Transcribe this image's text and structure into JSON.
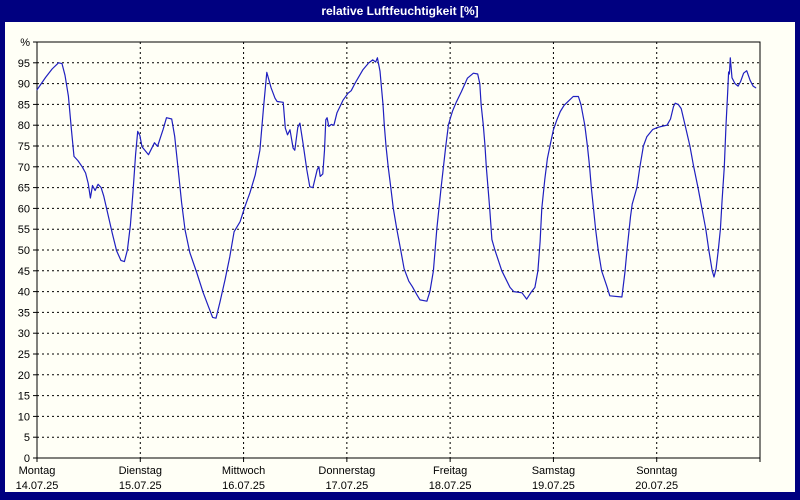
{
  "window": {
    "title": "relative Luftfeuchtigkeit [%]"
  },
  "colors": {
    "frame": "#000080",
    "title_text": "#ffffff",
    "curve": "#2020c0",
    "grid": "#000000",
    "axis": "#000000",
    "background": "#fffff6",
    "text": "#000000"
  },
  "chart_data": {
    "type": "line",
    "title": "relative Luftfeuchtigkeit [%]",
    "ylabel": "%",
    "y_axis_symbol": "%",
    "ylim": [
      0,
      100
    ],
    "y_tick_step": 5,
    "y_tick_labels": [
      0,
      5,
      10,
      15,
      20,
      25,
      30,
      35,
      40,
      45,
      50,
      55,
      60,
      65,
      70,
      75,
      80,
      85,
      90,
      95
    ],
    "x_unit": "hours",
    "x_range_hours": [
      0,
      168
    ],
    "grid": "dashed",
    "legend": "none",
    "days": [
      {
        "name": "Montag",
        "date": "14.07.25",
        "start_hour": 0
      },
      {
        "name": "Dienstag",
        "date": "15.07.25",
        "start_hour": 24
      },
      {
        "name": "Mittwoch",
        "date": "16.07.25",
        "start_hour": 48
      },
      {
        "name": "Donnerstag",
        "date": "17.07.25",
        "start_hour": 72
      },
      {
        "name": "Freitag",
        "date": "18.07.25",
        "start_hour": 96
      },
      {
        "name": "Samstag",
        "date": "19.07.25",
        "start_hour": 120
      },
      {
        "name": "Sonntag",
        "date": "20.07.25",
        "start_hour": 144
      }
    ],
    "series": [
      {
        "name": "relative Luftfeuchtigkeit",
        "points": [
          [
            0,
            88.5
          ],
          [
            1,
            90
          ],
          [
            2,
            91.5
          ],
          [
            3.5,
            93.5
          ],
          [
            5,
            95
          ],
          [
            5.8,
            94.8
          ],
          [
            6.5,
            92
          ],
          [
            7.3,
            87
          ],
          [
            8,
            79
          ],
          [
            8.6,
            72.5
          ],
          [
            9.5,
            71.5
          ],
          [
            10.5,
            70
          ],
          [
            11.3,
            68.5
          ],
          [
            11.9,
            66
          ],
          [
            12.4,
            62.5
          ],
          [
            12.9,
            65.5
          ],
          [
            13.5,
            64.3
          ],
          [
            14.2,
            65.8
          ],
          [
            14.9,
            65
          ],
          [
            15.5,
            63
          ],
          [
            16.5,
            58.5
          ],
          [
            17.5,
            54
          ],
          [
            18.5,
            49.8
          ],
          [
            19.5,
            47.5
          ],
          [
            20.3,
            47.2
          ],
          [
            21,
            50
          ],
          [
            21.7,
            56
          ],
          [
            22.3,
            64
          ],
          [
            22.9,
            73
          ],
          [
            23.4,
            78.5
          ],
          [
            23.9,
            77.5
          ],
          [
            24.4,
            74.8
          ],
          [
            25.9,
            72.9
          ],
          [
            27.3,
            75.8
          ],
          [
            28,
            74.9
          ],
          [
            29.3,
            79
          ],
          [
            30.1,
            81.8
          ],
          [
            31.3,
            81.5
          ],
          [
            32,
            77.3
          ],
          [
            32.8,
            69.3
          ],
          [
            33.6,
            61.4
          ],
          [
            34.4,
            54.9
          ],
          [
            35.5,
            49.4
          ],
          [
            37.1,
            44.6
          ],
          [
            38.6,
            39.8
          ],
          [
            39.8,
            36.5
          ],
          [
            40.8,
            33.8
          ],
          [
            41.6,
            33.6
          ],
          [
            42.5,
            37.4
          ],
          [
            43.7,
            42.9
          ],
          [
            44.8,
            48.4
          ],
          [
            45.8,
            54.4
          ],
          [
            47.2,
            56.8
          ],
          [
            48.3,
            60.4
          ],
          [
            49.5,
            63.8
          ],
          [
            50.7,
            68
          ],
          [
            51.8,
            74
          ],
          [
            52.7,
            85
          ],
          [
            53.4,
            92.7
          ],
          [
            54.4,
            89
          ],
          [
            55.3,
            86.5
          ],
          [
            55.8,
            85.7
          ],
          [
            57.2,
            85.5
          ],
          [
            57.7,
            79.3
          ],
          [
            58.2,
            77.7
          ],
          [
            58.8,
            78.9
          ],
          [
            59.5,
            74.5
          ],
          [
            59.9,
            74
          ],
          [
            60.6,
            79.5
          ],
          [
            61.1,
            80.5
          ],
          [
            61.8,
            75.7
          ],
          [
            62.7,
            69.3
          ],
          [
            63.4,
            65.2
          ],
          [
            64.1,
            65
          ],
          [
            65.1,
            69.3
          ],
          [
            65.5,
            70
          ],
          [
            65.8,
            67.7
          ],
          [
            66.4,
            68.3
          ],
          [
            66.8,
            74
          ],
          [
            67.1,
            81.3
          ],
          [
            67.4,
            81.8
          ],
          [
            67.8,
            79.7
          ],
          [
            68.4,
            80.2
          ],
          [
            69,
            80
          ],
          [
            69.7,
            83
          ],
          [
            71.1,
            86
          ],
          [
            72.3,
            87.7
          ],
          [
            73,
            88.3
          ],
          [
            74,
            90.3
          ],
          [
            75.7,
            93.3
          ],
          [
            77,
            94.9
          ],
          [
            78,
            95.7
          ],
          [
            78.7,
            95.2
          ],
          [
            79.1,
            96.2
          ],
          [
            79.7,
            93
          ],
          [
            80,
            89.5
          ],
          [
            80.4,
            85
          ],
          [
            80.7,
            80
          ],
          [
            81.1,
            75
          ],
          [
            81.6,
            70
          ],
          [
            82.2,
            65
          ],
          [
            82.8,
            60
          ],
          [
            83.6,
            55
          ],
          [
            84.5,
            50
          ],
          [
            85.3,
            45.5
          ],
          [
            86.4,
            42.5
          ],
          [
            87.2,
            41.2
          ],
          [
            88.3,
            39.2
          ],
          [
            89,
            38
          ],
          [
            90.6,
            37.7
          ],
          [
            91.3,
            40
          ],
          [
            92.1,
            45
          ],
          [
            92.9,
            55
          ],
          [
            93.9,
            65
          ],
          [
            95,
            75
          ],
          [
            95.6,
            80
          ],
          [
            96,
            81.5
          ],
          [
            96.6,
            83.5
          ],
          [
            97.4,
            85.5
          ],
          [
            98.6,
            88
          ],
          [
            100,
            91.3
          ],
          [
            101.4,
            92.5
          ],
          [
            102.4,
            92.3
          ],
          [
            102.9,
            90
          ],
          [
            103.2,
            85
          ],
          [
            103.7,
            80
          ],
          [
            104.1,
            75
          ],
          [
            104.4,
            70
          ],
          [
            104.8,
            65
          ],
          [
            105.2,
            60
          ],
          [
            105.7,
            52.5
          ],
          [
            106.4,
            50
          ],
          [
            108,
            45
          ],
          [
            109.9,
            41
          ],
          [
            110.8,
            40
          ],
          [
            112.7,
            39.7
          ],
          [
            113.8,
            38.2
          ],
          [
            114.8,
            39.8
          ],
          [
            115.7,
            41
          ],
          [
            116.4,
            45
          ],
          [
            116.9,
            52
          ],
          [
            117.3,
            60
          ],
          [
            118,
            67
          ],
          [
            118.6,
            72
          ],
          [
            119.3,
            75.5
          ],
          [
            120,
            78.9
          ],
          [
            120.8,
            81.3
          ],
          [
            121.6,
            83.3
          ],
          [
            122.5,
            84.8
          ],
          [
            123.5,
            85.8
          ],
          [
            124.6,
            86.9
          ],
          [
            125.8,
            86.9
          ],
          [
            126.4,
            84.9
          ],
          [
            127.3,
            80
          ],
          [
            127.9,
            75
          ],
          [
            128.4,
            70
          ],
          [
            128.8,
            65
          ],
          [
            129.3,
            60
          ],
          [
            129.8,
            55
          ],
          [
            130.4,
            50
          ],
          [
            131.2,
            45
          ],
          [
            132.4,
            41.3
          ],
          [
            133.1,
            39
          ],
          [
            135.9,
            38.7
          ],
          [
            136.6,
            44.6
          ],
          [
            137.1,
            50
          ],
          [
            137.6,
            55
          ],
          [
            137.9,
            58
          ],
          [
            138.3,
            61
          ],
          [
            139.4,
            65
          ],
          [
            140.1,
            70
          ],
          [
            140.9,
            75
          ],
          [
            141.7,
            77.2
          ],
          [
            143.1,
            79
          ],
          [
            144.3,
            79.5
          ],
          [
            145.5,
            79.8
          ],
          [
            146.4,
            80
          ],
          [
            147.2,
            81.5
          ],
          [
            147.9,
            84.5
          ],
          [
            148.3,
            85.3
          ],
          [
            149,
            85
          ],
          [
            149.7,
            84
          ],
          [
            150.6,
            80
          ],
          [
            151.7,
            75
          ],
          [
            152.6,
            70
          ],
          [
            153.6,
            65
          ],
          [
            154.5,
            60
          ],
          [
            155.4,
            55
          ],
          [
            156.1,
            50
          ],
          [
            156.9,
            45
          ],
          [
            157.3,
            43.5
          ],
          [
            157.8,
            45.5
          ],
          [
            158.3,
            50
          ],
          [
            158.8,
            55
          ],
          [
            159.2,
            62
          ],
          [
            159.7,
            70
          ],
          [
            160.1,
            80
          ],
          [
            160.5,
            88
          ],
          [
            160.7,
            92.8
          ],
          [
            160.9,
            92.3
          ],
          [
            161.1,
            96.2
          ],
          [
            161.5,
            91.4
          ],
          [
            162.2,
            90
          ],
          [
            162.9,
            89.4
          ],
          [
            163.5,
            90.5
          ],
          [
            164.2,
            92.5
          ],
          [
            164.9,
            93.1
          ],
          [
            165.7,
            90.8
          ],
          [
            166.4,
            89.4
          ],
          [
            167,
            89
          ]
        ]
      }
    ]
  }
}
